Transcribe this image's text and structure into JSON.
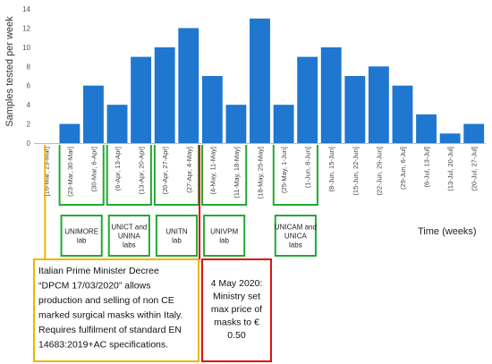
{
  "chart_data": {
    "type": "bar",
    "categories": [
      "16-Mar, 23-Mar",
      "23-Mar, 30-Mar",
      "30-Mar, 6-Apr",
      "6-Apr, 13-Apr",
      "13-Apr, 20-Apr",
      "20-Apr, 27-Apr",
      "27-Apr, 4-May",
      "4-May, 11-May",
      "11-May, 18-May",
      "18-May, 25-May",
      "25-May, 1-Jun",
      "1-Jun, 8-Jun",
      "8-Jun, 15-Jun",
      "15-Jun, 22-Jun",
      "22-Jun, 29-Jun",
      "29-Jun, 6-Jul",
      "6-Jul, 13-Jul",
      "13-Jul, 20-Jul",
      "20-Jul, 27-Jul"
    ],
    "tick_labels": [
      "[16-Mar, 23-Mar]",
      "(23-Mar, 30-Mar]",
      "(30-Mar, 6-Apr]",
      "(6-Apr, 13-Apr]",
      "(13-Apr, 20-Apr]",
      "(20-Apr, 27-Apr]",
      "(27-Apr, 4-May]",
      "(4-May, 11-May]",
      "(11-May, 18-May]",
      "(18-May, 25-May]",
      "(25-May, 1-Jun]",
      "(1-Jun, 8-Jun]",
      "(8-Jun, 15-Jun]",
      "(15-Jun, 22-Jun]",
      "(22-Jun, 29-Jun]",
      "(29-Jun, 6-Jul]",
      "(6-Jul, 13-Jul]",
      "(13-Jul, 20-Jul]",
      "(20-Jul, 27-Jul]"
    ],
    "values": [
      0,
      2,
      6,
      4,
      9,
      10,
      12,
      7,
      4,
      13,
      4,
      9,
      10,
      7,
      8,
      6,
      3,
      1,
      2
    ],
    "ylim": [
      0,
      14
    ],
    "yticks": [
      0,
      2,
      4,
      6,
      8,
      10,
      12,
      14
    ],
    "ylabel": "Samples tested per week",
    "xlabel": "Time (weeks)",
    "bar_color": "#1f77d0",
    "grid": false,
    "lab_boxes": [
      {
        "lines": [
          "UNIMORE",
          "lab"
        ],
        "start": 1,
        "end": 2
      },
      {
        "lines": [
          "UNICT and",
          "UNINA",
          "labs"
        ],
        "start": 3,
        "end": 4
      },
      {
        "lines": [
          "UNITN",
          "lab"
        ],
        "start": 5,
        "end": 6
      },
      {
        "lines": [
          "UNIVPM",
          "lab"
        ],
        "start": 7,
        "end": 8
      },
      {
        "lines": [
          "UNICAM and",
          "UNICA",
          "labs"
        ],
        "start": 10,
        "end": 11
      }
    ],
    "lab_box_color": "#22aa33",
    "annotations": [
      {
        "id": "decree",
        "color": "#f0b400",
        "anchor_category": 0,
        "lines": [
          "Italian Prime Minister Decree",
          "“DPCM 17/03/2020” allows",
          "production and selling of non CE",
          "marked surgical masks within Italy.",
          "Requires fulfilment of standard EN",
          "14683:2019+AC specifications."
        ]
      },
      {
        "id": "ministry",
        "color": "#dd1111",
        "anchor_category": 7,
        "lines": [
          "4 May 2020:",
          "Ministry set",
          "max price of",
          "masks to €",
          "0.50"
        ]
      }
    ]
  }
}
